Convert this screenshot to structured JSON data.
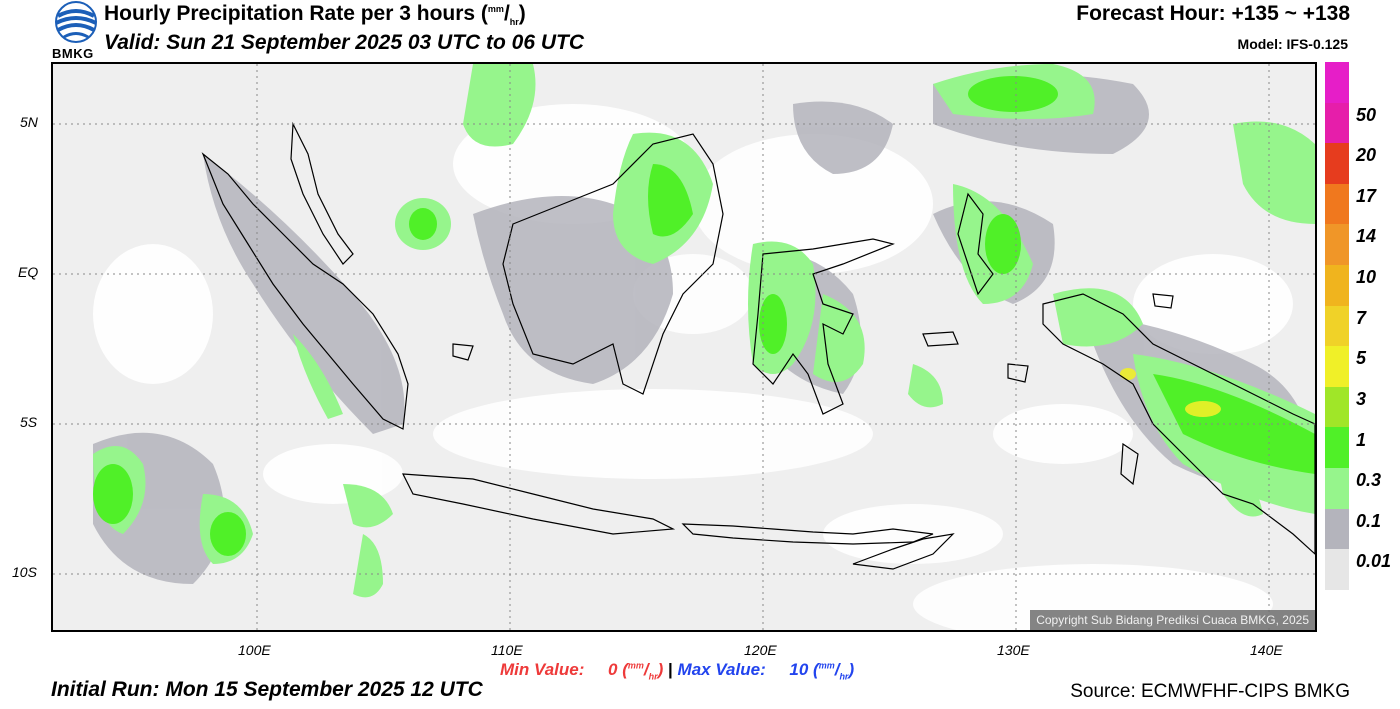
{
  "header": {
    "title": "Hourly Precipitation Rate per 3 hours",
    "title_unit_mm": "mm",
    "title_unit_hr": "hr",
    "valid": "Valid: Sun 21 September 2025 03 UTC to 06 UTC",
    "forecast_hour": "Forecast Hour: +135 ~ +138",
    "model": "Model: IFS-0.125",
    "logo_text": "BMKG"
  },
  "map": {
    "lat_labels": [
      "5N",
      "EQ",
      "5S",
      "10S"
    ],
    "lon_labels": [
      "100E",
      "110E",
      "120E",
      "130E",
      "140E"
    ],
    "copyright": "Copyright Sub Bidang Prediksi Cuaca BMKG, 2025"
  },
  "colorbar": {
    "levels": [
      "0.01",
      "0.1",
      "0.3",
      "1",
      "3",
      "5",
      "7",
      "10",
      "14",
      "17",
      "20",
      "50"
    ],
    "colors": [
      "#e6e6e6",
      "#b4b4bc",
      "#96f58c",
      "#50f028",
      "#a0e628",
      "#f0f028",
      "#f0d228",
      "#f0b41e",
      "#f09628",
      "#f0781e",
      "#e63c1e",
      "#e61eaa",
      "#e61ec8"
    ]
  },
  "footer": {
    "min_label": "Min Value:",
    "min_value": "0",
    "max_label": "Max Value:",
    "max_value": "10",
    "unit_mm": "mm",
    "unit_hr": "hr",
    "separator": "|",
    "initial_run": "Initial Run: Mon 15 September 2025 12 UTC",
    "source": "Source: ECMWFHF-CIPS BMKG"
  }
}
